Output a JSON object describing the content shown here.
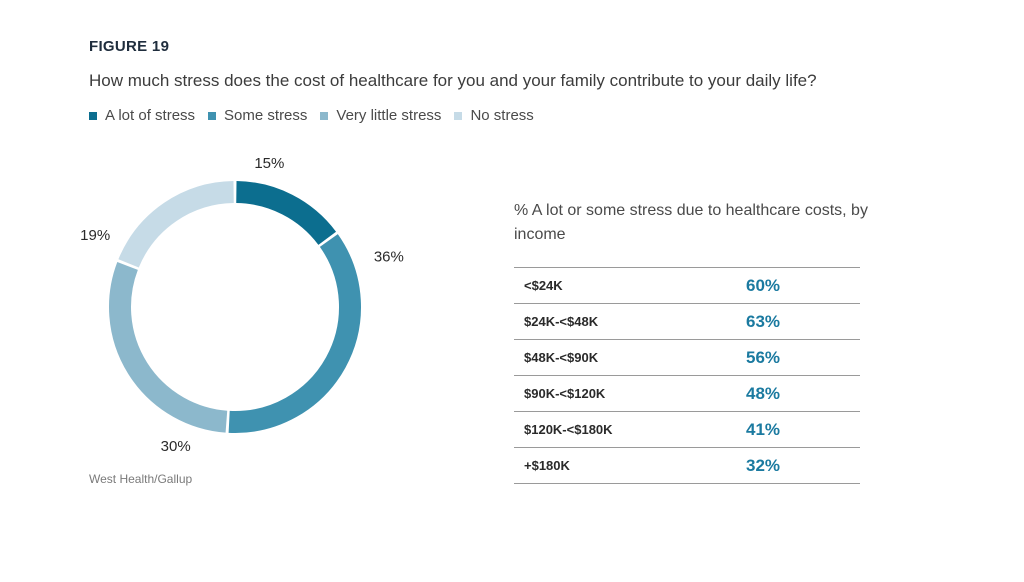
{
  "figure_label": "FIGURE 19",
  "question": "How much stress does the cost of healthcare for you and your family contribute to your daily life?",
  "source": "West Health/Gallup",
  "colors": {
    "a_lot": "#0c6e8f",
    "some": "#3f92b0",
    "very_little": "#8cb8cc",
    "none": "#c6dbe7",
    "value_text": "#1b7aa0"
  },
  "chart_data": [
    {
      "type": "pie",
      "donut": true,
      "legend_position": "top",
      "categories": [
        "A lot of stress",
        "Some stress",
        "Very little stress",
        "No stress"
      ],
      "values": [
        15,
        36,
        30,
        19
      ],
      "data_labels": [
        "15%",
        "36%",
        "30%",
        "19%"
      ]
    },
    {
      "type": "table",
      "title": "% A lot or some stress due to healthcare costs, by income",
      "categories": [
        "<$24K",
        "$24K-<$48K",
        "$48K-<$90K",
        "$90K-<$120K",
        "$120K-<$180K",
        "+$180K"
      ],
      "values": [
        60,
        63,
        56,
        48,
        41,
        32
      ],
      "data_labels": [
        "60%",
        "63%",
        "56%",
        "48%",
        "41%",
        "32%"
      ]
    }
  ]
}
